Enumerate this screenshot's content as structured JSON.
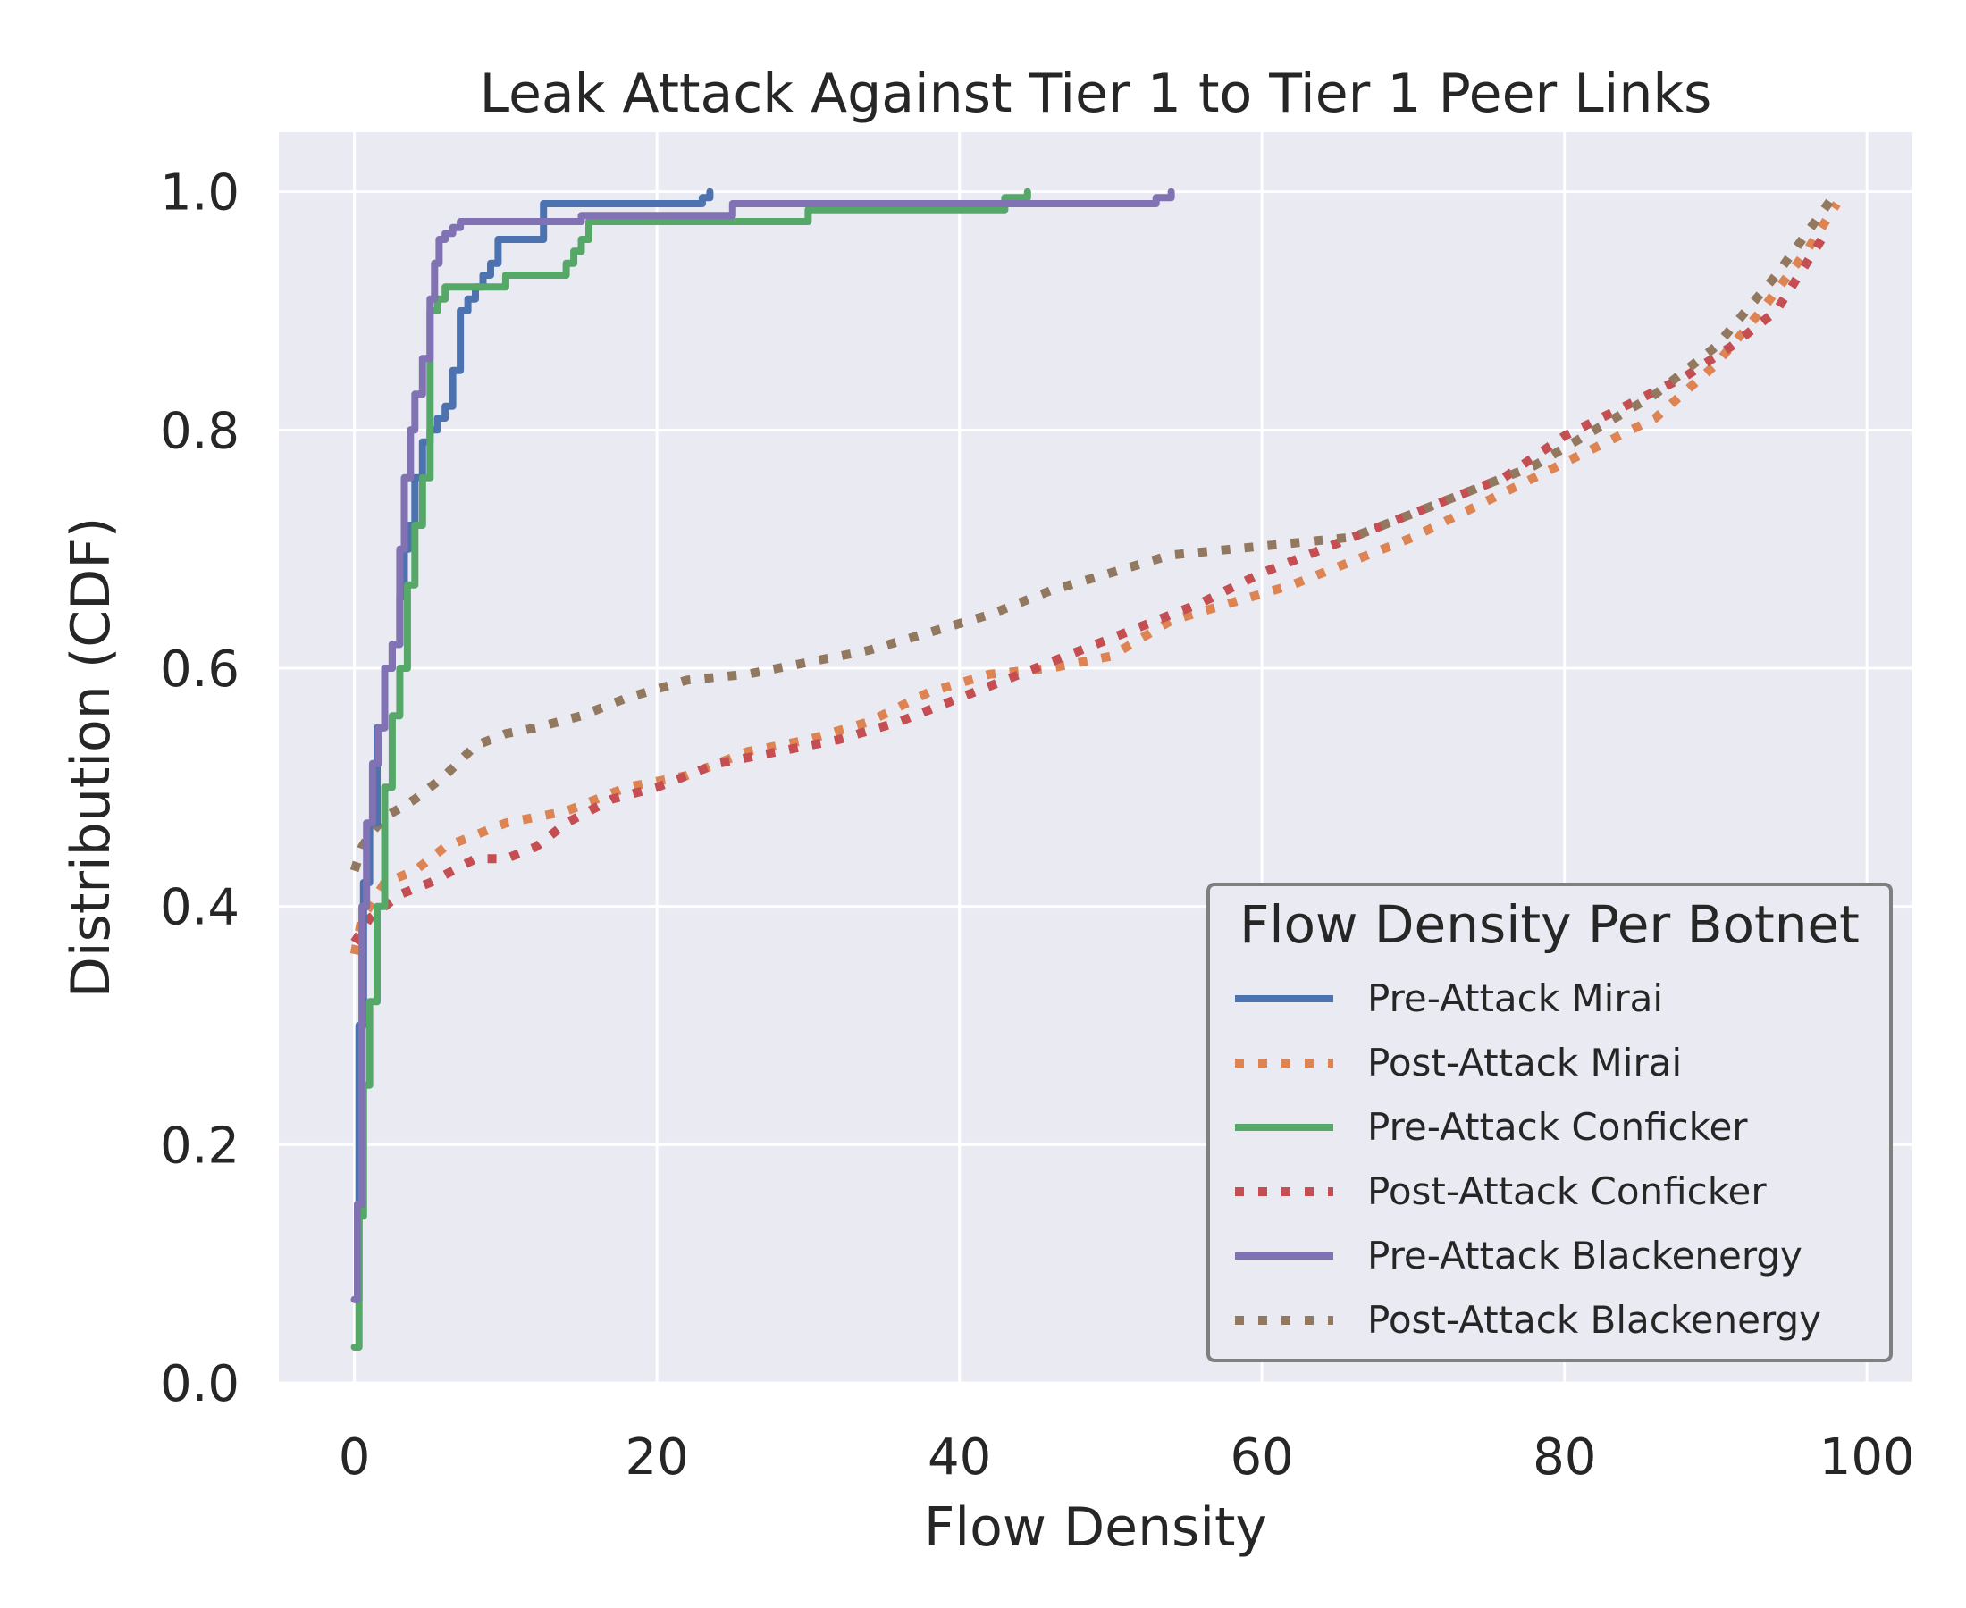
{
  "chart_data": {
    "type": "line",
    "title": "Leak Attack Against Tier 1 to Tier 1 Peer Links",
    "xlabel": "Flow Density",
    "ylabel": "Distribution (CDF)",
    "xlim": [
      -5,
      103
    ],
    "ylim": [
      0,
      1.05
    ],
    "xticks": [
      0,
      20,
      40,
      60,
      80,
      100
    ],
    "xtick_labels": [
      "0",
      "20",
      "40",
      "60",
      "80",
      "100"
    ],
    "yticks": [
      0,
      0.2,
      0.4,
      0.6,
      0.8,
      1.0
    ],
    "ytick_labels": [
      "0.0",
      "0.2",
      "0.4",
      "0.6",
      "0.8",
      "1.0"
    ],
    "grid": true,
    "legend": {
      "title": "Flow Density Per Botnet",
      "placement": "lower-right"
    },
    "series": [
      {
        "name": "Pre-Attack Mirai",
        "color": "#4c72b0",
        "style": "solid",
        "x": [
          0,
          0.3,
          0.6,
          1.0,
          1.5,
          2.0,
          2.5,
          3.0,
          3.3,
          3.6,
          4.0,
          4.5,
          5.0,
          5.5,
          6.0,
          6.5,
          7.0,
          7.5,
          8.0,
          8.5,
          9.0,
          9.5,
          10,
          11,
          12,
          12.5,
          13,
          15,
          18,
          20,
          22,
          23,
          23.5
        ],
        "y": [
          0.07,
          0.3,
          0.42,
          0.47,
          0.55,
          0.6,
          0.62,
          0.66,
          0.7,
          0.72,
          0.76,
          0.79,
          0.8,
          0.81,
          0.82,
          0.85,
          0.9,
          0.91,
          0.92,
          0.93,
          0.94,
          0.96,
          0.96,
          0.96,
          0.96,
          0.99,
          0.99,
          0.99,
          0.99,
          0.99,
          0.99,
          0.995,
          1.0
        ]
      },
      {
        "name": "Post-Attack Mirai",
        "color": "#dd8452",
        "style": "dotted",
        "x": [
          0,
          0.5,
          1,
          2,
          4,
          6,
          8,
          10,
          14,
          18,
          22,
          26,
          30,
          34,
          38,
          42,
          46,
          50,
          54,
          58,
          62,
          66,
          70,
          74,
          78,
          82,
          86,
          90,
          93,
          96,
          98
        ],
        "y": [
          0.36,
          0.39,
          0.4,
          0.42,
          0.43,
          0.45,
          0.46,
          0.47,
          0.48,
          0.5,
          0.51,
          0.53,
          0.54,
          0.555,
          0.58,
          0.595,
          0.6,
          0.61,
          0.64,
          0.655,
          0.67,
          0.69,
          0.71,
          0.735,
          0.76,
          0.785,
          0.81,
          0.855,
          0.9,
          0.95,
          0.99
        ]
      },
      {
        "name": "Pre-Attack Conficker",
        "color": "#55a868",
        "style": "solid",
        "x": [
          0,
          0.3,
          0.6,
          1.0,
          1.5,
          2.0,
          2.5,
          3.0,
          3.5,
          4.0,
          4.5,
          5.0,
          5.5,
          6.0,
          7,
          8,
          9,
          10,
          11,
          12,
          13,
          14,
          14.5,
          15,
          15.5,
          20,
          25,
          29,
          30,
          35,
          38,
          43,
          44.5
        ],
        "y": [
          0.03,
          0.14,
          0.25,
          0.32,
          0.4,
          0.5,
          0.56,
          0.6,
          0.67,
          0.72,
          0.76,
          0.9,
          0.91,
          0.92,
          0.92,
          0.92,
          0.92,
          0.93,
          0.93,
          0.93,
          0.93,
          0.94,
          0.95,
          0.96,
          0.975,
          0.975,
          0.975,
          0.975,
          0.985,
          0.985,
          0.985,
          0.995,
          1.0
        ]
      },
      {
        "name": "Post-Attack Conficker",
        "color": "#c44e52",
        "style": "dotted",
        "x": [
          0,
          0.5,
          1,
          2,
          3,
          5,
          8,
          10,
          12,
          14,
          17,
          20,
          24,
          28,
          32,
          36,
          40,
          44,
          48,
          52,
          56,
          60,
          64,
          68,
          72,
          76,
          80,
          84,
          88,
          91,
          94,
          97
        ],
        "y": [
          0.37,
          0.38,
          0.39,
          0.4,
          0.41,
          0.42,
          0.44,
          0.44,
          0.45,
          0.47,
          0.49,
          0.5,
          0.52,
          0.53,
          0.54,
          0.555,
          0.575,
          0.595,
          0.615,
          0.635,
          0.655,
          0.68,
          0.7,
          0.72,
          0.74,
          0.76,
          0.795,
          0.82,
          0.845,
          0.87,
          0.9,
          0.96
        ]
      },
      {
        "name": "Pre-Attack Blackenergy",
        "color": "#8172b3",
        "style": "solid",
        "x": [
          0,
          0.2,
          0.5,
          0.8,
          1.2,
          1.6,
          2.0,
          2.5,
          3.0,
          3.3,
          3.7,
          4.0,
          4.5,
          5.0,
          5.3,
          5.6,
          6.0,
          6.5,
          7.0,
          8,
          10,
          12,
          15,
          20,
          25,
          30,
          40,
          45,
          52,
          53,
          54
        ],
        "y": [
          0.07,
          0.15,
          0.4,
          0.47,
          0.52,
          0.55,
          0.6,
          0.62,
          0.7,
          0.76,
          0.8,
          0.83,
          0.86,
          0.91,
          0.94,
          0.96,
          0.965,
          0.97,
          0.975,
          0.975,
          0.975,
          0.975,
          0.98,
          0.98,
          0.99,
          0.99,
          0.99,
          0.99,
          0.99,
          0.995,
          1.0
        ]
      },
      {
        "name": "Post-Attack Blackenergy",
        "color": "#937860",
        "style": "dotted",
        "x": [
          0,
          0.5,
          1,
          2,
          4,
          6,
          8,
          10,
          12,
          15,
          18,
          22,
          26,
          30,
          34,
          38,
          42,
          46,
          50,
          54,
          58,
          62,
          66,
          70,
          74,
          78,
          82,
          86,
          90,
          94,
          98
        ],
        "y": [
          0.43,
          0.45,
          0.46,
          0.475,
          0.49,
          0.51,
          0.535,
          0.545,
          0.55,
          0.56,
          0.575,
          0.59,
          0.595,
          0.605,
          0.615,
          0.63,
          0.645,
          0.665,
          0.68,
          0.695,
          0.7,
          0.705,
          0.71,
          0.73,
          0.75,
          0.77,
          0.8,
          0.83,
          0.87,
          0.93,
          1.0
        ]
      }
    ]
  }
}
